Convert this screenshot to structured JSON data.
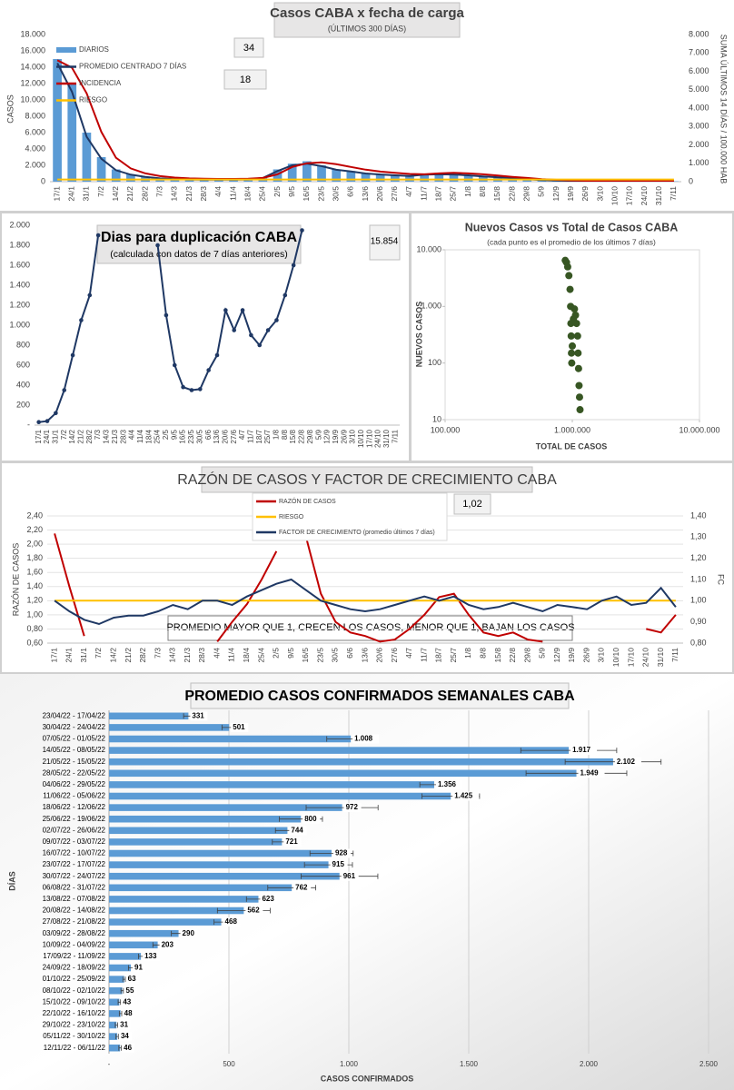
{
  "chart_data": [
    {
      "type": "combo",
      "title": "Casos  CABA x fecha  de carga",
      "subtitle": "(ÚLTIMOS 300 DÍAS)",
      "y_label": "CASOS",
      "y2_label": "SUMA ÚLTIMOS 14 DÍAS / 100.000 HAB",
      "categories": [
        "17/1",
        "24/1",
        "31/1",
        "7/2",
        "14/2",
        "21/2",
        "28/2",
        "7/3",
        "14/3",
        "21/3",
        "28/3",
        "4/4",
        "11/4",
        "18/4",
        "25/4",
        "2/5",
        "9/5",
        "16/5",
        "23/5",
        "30/5",
        "6/6",
        "13/6",
        "20/6",
        "27/6",
        "4/7",
        "11/7",
        "18/7",
        "25/7",
        "1/8",
        "8/8",
        "15/8",
        "22/8",
        "29/8",
        "5/9",
        "12/9",
        "19/9",
        "26/9",
        "3/10",
        "10/10",
        "17/10",
        "24/10",
        "31/10",
        "7/11"
      ],
      "series": [
        {
          "name": "DIARIOS",
          "kind": "bar",
          "color": "#5b9bd5",
          "values": [
            15000,
            12000,
            6000,
            3000,
            1500,
            900,
            600,
            400,
            300,
            280,
            260,
            250,
            250,
            280,
            500,
            1500,
            2200,
            2500,
            2000,
            1500,
            1300,
            1000,
            900,
            800,
            700,
            900,
            950,
            900,
            800,
            650,
            550,
            450,
            300,
            200,
            150,
            100,
            70,
            60,
            50,
            45,
            40,
            35,
            45
          ]
        },
        {
          "name": "PROMEDIO CENTRADO 7 DÍAS",
          "kind": "line",
          "color": "#1f3864",
          "values": [
            14500,
            11000,
            5500,
            2800,
            1400,
            850,
            580,
            400,
            300,
            270,
            250,
            240,
            240,
            270,
            450,
            1300,
            2000,
            2200,
            1900,
            1450,
            1250,
            1000,
            880,
            780,
            700,
            850,
            900,
            880,
            780,
            640,
            540,
            430,
            300,
            200,
            140,
            95,
            70,
            58,
            48,
            43,
            38,
            34,
            40
          ]
        },
        {
          "name": "INCIDENCIA",
          "kind": "line",
          "axis": "y2",
          "color": "#c00000",
          "values": [
            6600,
            6200,
            4800,
            2700,
            1300,
            720,
            450,
            300,
            220,
            180,
            160,
            150,
            150,
            160,
            200,
            400,
            800,
            1000,
            1050,
            950,
            800,
            650,
            550,
            480,
            420,
            400,
            450,
            480,
            450,
            400,
            330,
            260,
            200,
            140,
            100,
            70,
            50,
            40,
            35,
            30,
            28,
            26,
            28
          ]
        },
        {
          "name": "RIESGO",
          "kind": "line",
          "axis": "y2",
          "color": "#ffc000",
          "values": [
            120,
            120,
            120,
            120,
            120,
            120,
            120,
            120,
            120,
            120,
            120,
            120,
            120,
            120,
            120,
            120,
            120,
            120,
            120,
            120,
            120,
            120,
            120,
            120,
            120,
            120,
            120,
            120,
            120,
            120,
            120,
            120,
            120,
            120,
            120,
            120,
            120,
            120,
            120,
            120,
            120,
            120,
            120
          ]
        }
      ],
      "ylim": [
        0,
        18000
      ],
      "yticks": [
        0,
        {
          "value": 2000,
          "label": "2.000"
        },
        {
          "value": 4000,
          "label": "4.000"
        },
        {
          "value": 6000,
          "label": "6.000"
        },
        {
          "value": 8000,
          "label": "8.000"
        },
        {
          "value": 10000,
          "label": "10.000"
        },
        {
          "value": 12000,
          "label": "12.000"
        },
        {
          "value": 14000,
          "label": "14.000"
        },
        {
          "value": 16000,
          "label": "16.000"
        },
        {
          "value": 18000,
          "label": "18.000"
        }
      ],
      "y2lim": [
        0,
        8000
      ],
      "y2ticks": [
        0,
        {
          "value": 1000,
          "label": "1.000"
        },
        {
          "value": 2000,
          "label": "2.000"
        },
        {
          "value": 3000,
          "label": "3.000"
        },
        {
          "value": 4000,
          "label": "4.000"
        },
        {
          "value": 5000,
          "label": "5.000"
        },
        {
          "value": 6000,
          "label": "6.000"
        },
        {
          "value": 7000,
          "label": "7.000"
        },
        {
          "value": 8000,
          "label": "8.000"
        }
      ],
      "grid": false,
      "legend": "upper left",
      "annotations": [
        "34",
        "18"
      ]
    },
    {
      "type": "line",
      "title": "Dias para duplicación CABA",
      "subtitle": "(calculada con datos de 7 días anteriores)",
      "categories": [
        "17/1",
        "24/1",
        "31/1",
        "7/2",
        "14/2",
        "21/2",
        "28/2",
        "7/3",
        "14/3",
        "21/3",
        "28/3",
        "4/4",
        "11/4",
        "18/4",
        "25/4",
        "2/5",
        "9/5",
        "16/5",
        "23/5",
        "30/5",
        "6/6",
        "13/6",
        "20/6",
        "27/6",
        "4/7",
        "11/7",
        "18/7",
        "25/7",
        "1/8",
        "8/8",
        "15/8",
        "22/8",
        "29/8",
        "5/9",
        "12/9",
        "19/9",
        "26/9",
        "3/10",
        "10/10",
        "17/10",
        "24/10",
        "31/10",
        "7/11"
      ],
      "values": [
        30,
        40,
        120,
        350,
        700,
        1050,
        1300,
        1900,
        null,
        null,
        null,
        null,
        null,
        null,
        1800,
        1100,
        600,
        380,
        350,
        360,
        550,
        700,
        1150,
        950,
        1150,
        900,
        800,
        950,
        1050,
        1300,
        1600,
        1950,
        null,
        null,
        null,
        null,
        null,
        null,
        null,
        null,
        null,
        null,
        null
      ],
      "color": "#1f3864",
      "markers": true,
      "ylim": [
        0,
        2000
      ],
      "yticks": [
        {
          "value": 0,
          "label": "-"
        },
        200,
        400,
        600,
        800,
        {
          "value": 1000,
          "label": "1.000"
        },
        {
          "value": 1200,
          "label": "1.200"
        },
        {
          "value": 1400,
          "label": "1.400"
        },
        {
          "value": 1600,
          "label": "1.600"
        },
        {
          "value": 1800,
          "label": "1.800"
        },
        {
          "value": 2000,
          "label": "2.000"
        }
      ],
      "grid": false,
      "annotations": [
        "15.854"
      ]
    },
    {
      "type": "scatter",
      "title": "Nuevos Casos vs Total de Casos CABA",
      "subtitle": "(cada punto es el promedio de los últimos 7 días)",
      "x_label": "TOTAL DE CASOS",
      "y_label": "NUEVOS CASOS",
      "x": [
        880000,
        900000,
        920000,
        940000,
        960000,
        970000,
        975000,
        980000,
        985000,
        990000,
        1000000,
        1020000,
        1040000,
        1060000,
        1080000,
        1100000,
        1110000,
        1120000,
        1130000,
        1140000,
        1150000
      ],
      "values": [
        6500,
        6000,
        5000,
        3500,
        2000,
        1000,
        500,
        300,
        150,
        100,
        200,
        600,
        900,
        700,
        500,
        300,
        150,
        80,
        40,
        25,
        15
      ],
      "color": "#375623",
      "log_x": true,
      "log_y": true,
      "xlim": [
        100000,
        10000000
      ],
      "xticks": [
        {
          "value": 100000,
          "label": "100.000"
        },
        {
          "value": 1000000,
          "label": "1.000.000"
        },
        {
          "value": 10000000,
          "label": "10.000.000"
        }
      ],
      "ylim": [
        10,
        10000
      ],
      "yticks": [
        10,
        100,
        {
          "value": 1000,
          "label": "1.000"
        },
        {
          "value": 10000,
          "label": "10.000"
        }
      ],
      "grid": false
    },
    {
      "type": "line",
      "title": "RAZÓN DE CASOS Y FACTOR DE CRECIMIENTO CABA",
      "y_label": "RAZÓN DE CASOS",
      "y2_label": "FC",
      "categories": [
        "17/1",
        "24/1",
        "31/1",
        "7/2",
        "14/2",
        "21/2",
        "28/2",
        "7/3",
        "14/3",
        "21/3",
        "28/3",
        "4/4",
        "11/4",
        "18/4",
        "25/4",
        "2/5",
        "9/5",
        "16/5",
        "23/5",
        "30/5",
        "6/6",
        "13/6",
        "20/6",
        "27/6",
        "4/7",
        "11/7",
        "18/7",
        "25/7",
        "1/8",
        "8/8",
        "15/8",
        "22/8",
        "29/8",
        "5/9",
        "12/9",
        "19/9",
        "26/9",
        "3/10",
        "10/10",
        "17/10",
        "24/10",
        "31/10",
        "7/11"
      ],
      "series": [
        {
          "name": "RAZÓN DE CASOS",
          "kind": "line",
          "color": "#c00000",
          "values": [
            2.15,
            1.4,
            0.7,
            null,
            null,
            null,
            null,
            null,
            null,
            null,
            null,
            0.62,
            0.9,
            1.15,
            1.5,
            1.9,
            null,
            2.1,
            1.3,
            0.9,
            0.75,
            0.7,
            0.62,
            0.65,
            0.8,
            1.0,
            1.25,
            1.3,
            1.0,
            0.75,
            0.7,
            0.75,
            0.65,
            0.62,
            null,
            null,
            null,
            null,
            null,
            null,
            0.8,
            0.75,
            1.0
          ]
        },
        {
          "name": "RIESGO",
          "kind": "line",
          "axis": "y2",
          "color": "#ffc000",
          "values": [
            1,
            1,
            1,
            1,
            1,
            1,
            1,
            1,
            1,
            1,
            1,
            1,
            1,
            1,
            1,
            1,
            1,
            1,
            1,
            1,
            1,
            1,
            1,
            1,
            1,
            1,
            1,
            1,
            1,
            1,
            1,
            1,
            1,
            1,
            1,
            1,
            1,
            1,
            1,
            1,
            1,
            1,
            1
          ]
        },
        {
          "name": "FACTOR DE CRECIMIENTO (promedio últimos 7 días)",
          "kind": "line",
          "axis": "y2",
          "color": "#1f3864",
          "values": [
            1.0,
            0.95,
            0.91,
            0.89,
            0.92,
            0.93,
            0.93,
            0.95,
            0.98,
            0.96,
            1.0,
            1.0,
            0.98,
            1.02,
            1.05,
            1.08,
            1.1,
            1.05,
            1.0,
            0.98,
            0.96,
            0.95,
            0.96,
            0.98,
            1.0,
            1.02,
            1.0,
            1.02,
            0.98,
            0.96,
            0.97,
            0.99,
            0.97,
            0.95,
            0.98,
            0.97,
            0.96,
            1.0,
            1.02,
            0.98,
            0.99,
            1.06,
            0.97
          ]
        }
      ],
      "ylim": [
        0.6,
        2.4
      ],
      "yticks": [
        {
          "value": 0.6,
          "label": "0,60"
        },
        {
          "value": 0.8,
          "label": "0,80"
        },
        {
          "value": 1.0,
          "label": "1,00"
        },
        {
          "value": 1.2,
          "label": "1,20"
        },
        {
          "value": 1.4,
          "label": "1,40"
        },
        {
          "value": 1.6,
          "label": "1,60"
        },
        {
          "value": 1.8,
          "label": "1,80"
        },
        {
          "value": 2.0,
          "label": "2,00"
        },
        {
          "value": 2.2,
          "label": "2,20"
        },
        {
          "value": 2.4,
          "label": "2,40"
        }
      ],
      "y2lim": [
        0.8,
        1.4
      ],
      "y2ticks": [
        {
          "value": 0.8,
          "label": "0,80"
        },
        {
          "value": 0.9,
          "label": "0,90"
        },
        {
          "value": 1.0,
          "label": "1,00"
        },
        {
          "value": 1.1,
          "label": "1,10"
        },
        {
          "value": 1.2,
          "label": "1,20"
        },
        {
          "value": 1.3,
          "label": "1,30"
        },
        {
          "value": 1.4,
          "label": "1,40"
        }
      ],
      "grid": true,
      "legend": "upper center",
      "annotations": [
        "1,02",
        "PROMEDIO MAYOR QUE 1, CRECEN LOS CASOS, MENOR QUE 1, BAJAN LOS CASOS"
      ]
    },
    {
      "type": "bar",
      "orientation": "horizontal",
      "title": "PROMEDIO CASOS CONFIRMADOS SEMANALES CABA",
      "x_label": "CASOS CONFIRMADOS",
      "y_label": "DÍAS",
      "categories": [
        "23/04/22 - 17/04/22",
        "30/04/22 - 24/04/22",
        "07/05/22 - 01/05/22",
        "14/05/22 - 08/05/22",
        "21/05/22 - 15/05/22",
        "28/05/22 - 22/05/22",
        "04/06/22 - 29/05/22",
        "11/06/22 - 05/06/22",
        "18/06/22 - 12/06/22",
        "25/06/22 - 19/06/22",
        "02/07/22 - 26/06/22",
        "09/07/22 - 03/07/22",
        "16/07/22 - 10/07/22",
        "23/07/22 - 17/07/22",
        "30/07/22 - 24/07/22",
        "06/08/22 - 31/07/22",
        "13/08/22 - 07/08/22",
        "20/08/22 - 14/08/22",
        "27/08/22 - 21/08/22",
        "03/09/22 - 28/08/22",
        "10/09/22 - 04/09/22",
        "17/09/22 - 11/09/22",
        "24/09/22 - 18/09/22",
        "01/10/22 - 25/09/22",
        "08/10/22 - 02/10/22",
        "15/10/22 - 09/10/22",
        "22/10/22 - 16/10/22",
        "29/10/22 - 23/10/22",
        "05/11/22 - 30/10/22",
        "12/11/22 - 06/11/22"
      ],
      "values": [
        331,
        501,
        1008,
        1917,
        2102,
        1949,
        1356,
        1425,
        972,
        800,
        744,
        721,
        928,
        915,
        961,
        762,
        623,
        562,
        468,
        290,
        203,
        133,
        91,
        63,
        55,
        43,
        48,
        31,
        34,
        46
      ],
      "value_labels": [
        "331",
        "501",
        "1.008",
        "1.917",
        "2.102",
        "1.949",
        "1.356",
        "1.425",
        "972",
        "800",
        "744",
        "721",
        "928",
        "915",
        "961",
        "762",
        "623",
        "562",
        "468",
        "290",
        "203",
        "133",
        "91",
        "63",
        "55",
        "43",
        "48",
        "31",
        "34",
        "46"
      ],
      "errors": [
        20,
        30,
        100,
        200,
        200,
        210,
        60,
        120,
        150,
        90,
        50,
        40,
        90,
        100,
        160,
        100,
        50,
        110,
        30,
        30,
        20,
        10,
        10,
        5,
        5,
        5,
        5,
        5,
        5,
        5
      ],
      "color": "#5b9bd5",
      "xlim": [
        0,
        2500
      ],
      "xticks": [
        {
          "value": 0,
          "label": "-"
        },
        500,
        {
          "value": 1000,
          "label": "1.000"
        },
        {
          "value": 1500,
          "label": "1.500"
        },
        {
          "value": 2000,
          "label": "2.000"
        },
        {
          "value": 2500,
          "label": "2.500"
        }
      ],
      "grid": true
    }
  ]
}
